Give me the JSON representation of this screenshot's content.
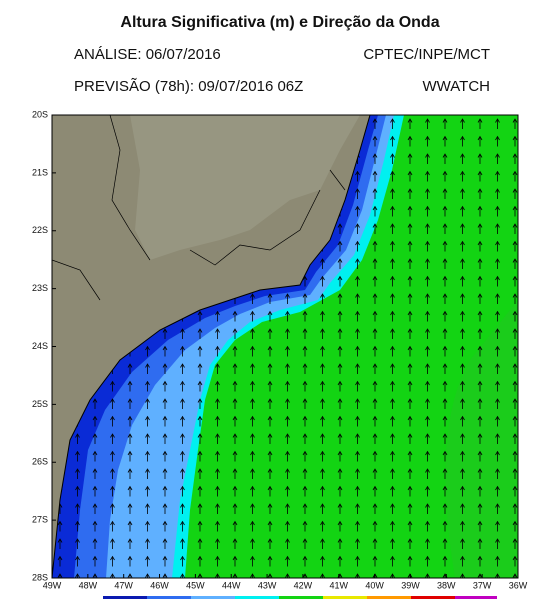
{
  "header": {
    "title": "Altura Significativa (m) e Direção da Onda",
    "analysis": "ANÁLISE: 06/07/2016",
    "source": "CPTEC/INPE/MCT",
    "forecast": "PREVISÃO (78h): 09/07/2016 06Z",
    "model": "WWATCH"
  },
  "map": {
    "lat_labels": [
      "20S",
      "21S",
      "22S",
      "23S",
      "24S",
      "25S",
      "26S",
      "27S",
      "28S"
    ],
    "lon_labels": [
      "49W",
      "48W",
      "47W",
      "46W",
      "45W",
      "44W",
      "43W",
      "42W",
      "41W",
      "40W",
      "39W",
      "38W",
      "37W",
      "36W"
    ]
  }
}
